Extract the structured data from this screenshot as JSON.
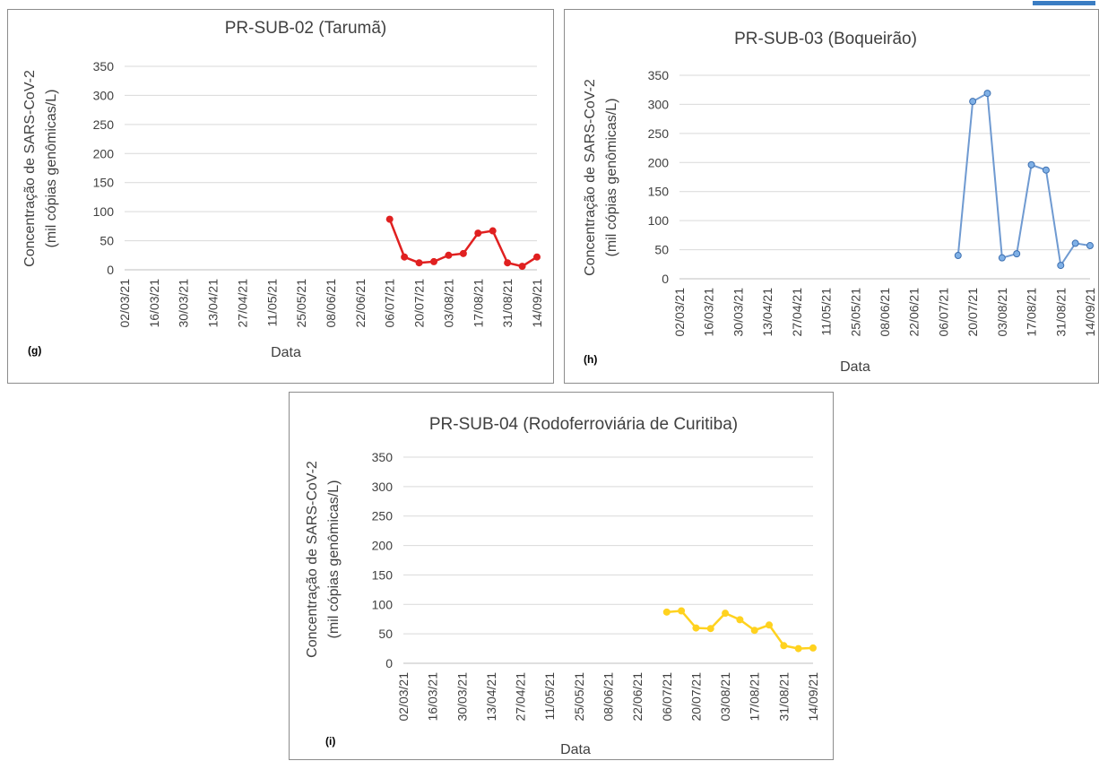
{
  "chart_data": [
    {
      "type": "line",
      "title": "PR-SUB-02 (Tarumã)",
      "panel_label": "(g)",
      "ylabel_line1": "Concentração de SARS-CoV-2",
      "ylabel_line2": "(mil cópias genômicas/L)",
      "xlabel": "Data",
      "ylim": [
        0,
        350
      ],
      "yticks": [
        0,
        50,
        100,
        150,
        200,
        250,
        300,
        350
      ],
      "grid": true,
      "xticks": [
        "02/03/21",
        "16/03/21",
        "30/03/21",
        "13/04/21",
        "27/04/21",
        "11/05/21",
        "25/05/21",
        "08/06/21",
        "22/06/21",
        "06/07/21",
        "20/07/21",
        "03/08/21",
        "17/08/21",
        "31/08/21",
        "14/09/21"
      ],
      "color": "#e02020",
      "marker": "filled",
      "x": [
        "06/07/21",
        "13/07/21",
        "20/07/21",
        "27/07/21",
        "03/08/21",
        "10/08/21",
        "17/08/21",
        "24/08/21",
        "31/08/21",
        "07/09/21",
        "14/09/21"
      ],
      "y": [
        87,
        22,
        12,
        14,
        25,
        28,
        63,
        67,
        12,
        6,
        22
      ]
    },
    {
      "type": "line",
      "title": "PR-SUB-03 (Boqueirão)",
      "panel_label": "(h)",
      "ylabel_line1": "Concentração de SARS-CoV-2",
      "ylabel_line2": "(mil cópias genômicas/L)",
      "xlabel": "Data",
      "ylim": [
        0,
        350
      ],
      "yticks": [
        0,
        50,
        100,
        150,
        200,
        250,
        300,
        350
      ],
      "grid": true,
      "xticks": [
        "02/03/21",
        "16/03/21",
        "30/03/21",
        "13/04/21",
        "27/04/21",
        "11/05/21",
        "25/05/21",
        "08/06/21",
        "22/06/21",
        "06/07/21",
        "20/07/21",
        "03/08/21",
        "17/08/21",
        "31/08/21",
        "14/09/21"
      ],
      "color": "#6f9ad1",
      "marker": "open",
      "x": [
        "13/07/21",
        "20/07/21",
        "27/07/21",
        "03/08/21",
        "10/08/21",
        "17/08/21",
        "24/08/21",
        "31/08/21",
        "07/09/21",
        "14/09/21"
      ],
      "y": [
        40,
        305,
        319,
        36,
        43,
        196,
        187,
        23,
        61,
        57
      ]
    },
    {
      "type": "line",
      "title": "PR-SUB-04 (Rodoferroviária de Curitiba)",
      "panel_label": "(i)",
      "ylabel_line1": "Concentração de SARS-CoV-2",
      "ylabel_line2": "(mil cópias genômicas/L)",
      "xlabel": "Data",
      "ylim": [
        0,
        350
      ],
      "yticks": [
        0,
        50,
        100,
        150,
        200,
        250,
        300,
        350
      ],
      "grid": true,
      "xticks": [
        "02/03/21",
        "16/03/21",
        "30/03/21",
        "13/04/21",
        "27/04/21",
        "11/05/21",
        "25/05/21",
        "08/06/21",
        "22/06/21",
        "06/07/21",
        "20/07/21",
        "03/08/21",
        "17/08/21",
        "31/08/21",
        "14/09/21"
      ],
      "color": "#ffd21f",
      "marker": "filled",
      "x": [
        "06/07/21",
        "13/07/21",
        "20/07/21",
        "27/07/21",
        "03/08/21",
        "10/08/21",
        "17/08/21",
        "24/08/21",
        "31/08/21",
        "07/09/21",
        "14/09/21"
      ],
      "y": [
        87,
        89,
        60,
        59,
        85,
        74,
        56,
        65,
        30,
        25,
        26
      ]
    }
  ]
}
